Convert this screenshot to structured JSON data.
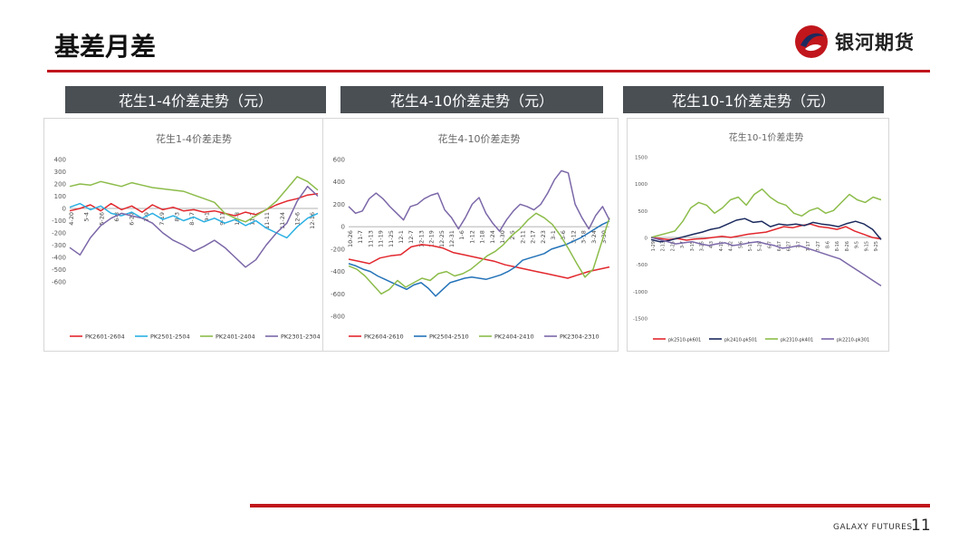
{
  "page": {
    "title": "基差月差",
    "page_number": "11",
    "footer": "GALAXY FUTURES"
  },
  "logo": {
    "text": "银河期货"
  },
  "colors": {
    "accent": "#c0161c",
    "header_bg": "#4a4f54"
  },
  "chart_data": [
    {
      "type": "line",
      "header": "花生1-4价差走势（元）",
      "title": "花生1-4价差走势",
      "ylim": [
        -600,
        400
      ],
      "yticks": [
        400,
        300,
        200,
        100,
        0,
        -100,
        -200,
        -300,
        -400,
        -500,
        -600
      ],
      "x_labels": [
        "4-20",
        "5-4",
        "5-26",
        "6-8",
        "6-27",
        "7-9",
        "7-19",
        "8-3",
        "8-17",
        "9-1",
        "9-11",
        "10-8",
        "11-1",
        "11-11",
        "11-24",
        "12-6",
        "12-16"
      ],
      "series": [
        {
          "name": "PK2601-2604",
          "color": "#e2282e",
          "values": [
            -20,
            0,
            30,
            -20,
            40,
            -10,
            20,
            -30,
            30,
            -10,
            10,
            -20,
            -10,
            -30,
            -20,
            -40,
            -60,
            -30,
            -50,
            -10,
            30,
            60,
            80,
            110,
            120
          ]
        },
        {
          "name": "PK2501-2504",
          "color": "#2bb0e3",
          "values": [
            10,
            40,
            -10,
            20,
            -40,
            -60,
            -30,
            -80,
            -40,
            -90,
            -60,
            -100,
            -70,
            -110,
            -80,
            -120,
            -90,
            -140,
            -100,
            -160,
            -200,
            -240,
            -150,
            -80,
            -40
          ]
        },
        {
          "name": "PK2401-2404",
          "color": "#8cbc4a",
          "values": [
            180,
            200,
            190,
            220,
            200,
            180,
            210,
            190,
            170,
            160,
            150,
            140,
            110,
            80,
            50,
            -40,
            -80,
            -110,
            -60,
            -10,
            60,
            160,
            260,
            220,
            150
          ]
        },
        {
          "name": "PK2301-2304",
          "color": "#7b67a8",
          "values": [
            -320,
            -380,
            -240,
            -140,
            -80,
            -40,
            -60,
            -80,
            -120,
            -200,
            -260,
            -300,
            -350,
            -310,
            -260,
            -320,
            -400,
            -480,
            -420,
            -300,
            -200,
            -120,
            60,
            180,
            100
          ]
        }
      ],
      "legend_position": "bottom"
    },
    {
      "type": "line",
      "header": "花生4-10价差走势（元）",
      "title": "花生4-10价差走势",
      "ylim": [
        -800,
        600
      ],
      "yticks": [
        600,
        400,
        200,
        0,
        -200,
        -400,
        -600,
        -800
      ],
      "x_labels": [
        "10-26",
        "11-7",
        "11-13",
        "11-19",
        "11-25",
        "12-1",
        "12-7",
        "12-13",
        "12-19",
        "12-25",
        "12-31",
        "1-6",
        "1-12",
        "1-18",
        "1-24",
        "1-30",
        "2-5",
        "2-11",
        "2-17",
        "2-23",
        "3-1",
        "3-6",
        "3-12",
        "3-18",
        "3-24",
        "3-30"
      ],
      "series": [
        {
          "name": "PK2604-2610",
          "color": "#e2282e",
          "values": [
            -290,
            -310,
            -330,
            -280,
            -260,
            -250,
            -180,
            -160,
            -170,
            -190,
            -230,
            -250,
            -270,
            -290,
            -310,
            -340,
            -360,
            -380,
            -400,
            -420,
            -440,
            -460,
            -430,
            -400,
            -380,
            -360
          ]
        },
        {
          "name": "PK2504-2510",
          "color": "#2473b8",
          "values": [
            -330,
            -350,
            -380,
            -400,
            -440,
            -470,
            -500,
            -530,
            -560,
            -520,
            -500,
            -550,
            -620,
            -560,
            -500,
            -480,
            -460,
            -450,
            -460,
            -470,
            -450,
            -430,
            -400,
            -360,
            -300,
            -280,
            -260,
            -240,
            -200,
            -180,
            -160,
            -130,
            -100,
            -60,
            -20,
            20,
            50
          ]
        },
        {
          "name": "PK2404-2410",
          "color": "#8cbc4a",
          "values": [
            -350,
            -380,
            -440,
            -520,
            -600,
            -560,
            -480,
            -540,
            -500,
            -460,
            -480,
            -420,
            -400,
            -440,
            -420,
            -380,
            -320,
            -260,
            -220,
            -160,
            -80,
            -20,
            60,
            120,
            80,
            20,
            -80,
            -200,
            -330,
            -450,
            -380,
            -150,
            80
          ]
        },
        {
          "name": "PK2304-2310",
          "color": "#7b67a8",
          "values": [
            180,
            120,
            140,
            250,
            300,
            250,
            180,
            120,
            60,
            180,
            200,
            250,
            280,
            300,
            150,
            80,
            -20,
            80,
            200,
            260,
            120,
            30,
            -40,
            60,
            140,
            200,
            180,
            150,
            200,
            300,
            420,
            500,
            480,
            200,
            80,
            -20,
            100,
            180,
            60
          ]
        }
      ],
      "legend_position": "bottom"
    },
    {
      "type": "line",
      "header": "花生10-1价差走势（元）",
      "title": "花生10-1价差走势",
      "ylim": [
        -1500,
        1500
      ],
      "yticks": [
        1500,
        1000,
        500,
        0,
        -500,
        -1000,
        -1500
      ],
      "x_labels": [
        "1-29",
        "2-13",
        "2-25",
        "3-7",
        "3-15",
        "3-25",
        "4-3",
        "4-12",
        "4-22",
        "5-6",
        "5-17",
        "5-28",
        "6-7",
        "6-17",
        "6-27",
        "7-7",
        "7-17",
        "7-27",
        "8-6",
        "8-16",
        "8-26",
        "9-5",
        "9-15",
        "9-25"
      ],
      "series": [
        {
          "name": "pk2510-pk601",
          "color": "#e2282e",
          "values": [
            0,
            -20,
            -40,
            -20,
            -50,
            -30,
            -20,
            0,
            20,
            0,
            30,
            60,
            80,
            100,
            150,
            200,
            180,
            220,
            250,
            200,
            180,
            150,
            200,
            120,
            60,
            0,
            -30
          ]
        },
        {
          "name": "pk2410-pk501",
          "color": "#1c2a5e",
          "values": [
            -40,
            -80,
            -60,
            -20,
            20,
            60,
            100,
            150,
            180,
            250,
            320,
            350,
            280,
            300,
            200,
            250,
            230,
            250,
            220,
            280,
            250,
            230,
            200,
            260,
            300,
            250,
            150,
            -40
          ]
        },
        {
          "name": "pk2310-pk401",
          "color": "#8cbc4a",
          "values": [
            0,
            40,
            80,
            120,
            300,
            550,
            650,
            600,
            450,
            550,
            700,
            750,
            600,
            800,
            900,
            750,
            650,
            600,
            450,
            400,
            500,
            550,
            450,
            500,
            650,
            800,
            700,
            650,
            750,
            700
          ]
        },
        {
          "name": "pk2210-pk301",
          "color": "#7b67a8",
          "values": [
            0,
            -40,
            -80,
            -120,
            -100,
            -80,
            -120,
            -150,
            -120,
            -100,
            -150,
            -130,
            -100,
            -80,
            -120,
            -150,
            -200,
            -180,
            -150,
            -200,
            -250,
            -300,
            -350,
            -400,
            -500,
            -600,
            -700,
            -800,
            -900
          ]
        }
      ],
      "legend_position": "bottom"
    }
  ]
}
